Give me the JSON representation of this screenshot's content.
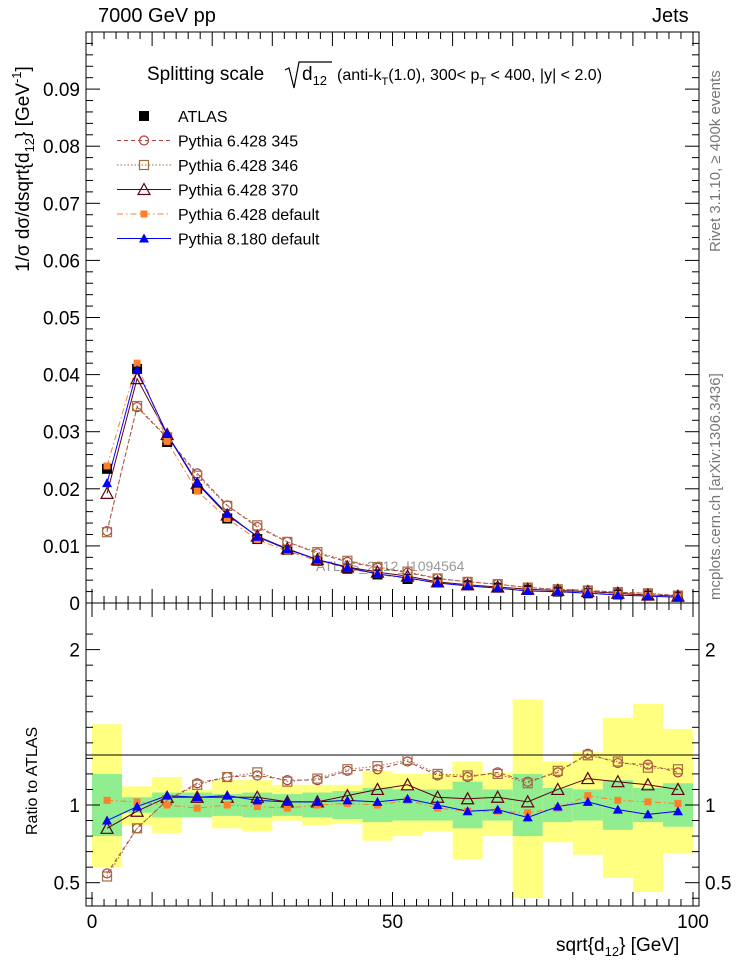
{
  "header": {
    "energy": "7000 GeV pp",
    "process": "Jets"
  },
  "side": {
    "rivet": "Rivet 3.1.10, ≥ 400k events",
    "mcplots": "mcplots.cern.ch [arXiv:1306.3436]"
  },
  "chart_data": [
    {
      "type": "line",
      "title": "Splitting scale √d12 (anti-kT(1.0), 300< pT < 400, |y| < 2.0)",
      "title_parts": {
        "main": "Splitting scale",
        "d": "d",
        "sub12": "12",
        "anti": "(anti-k",
        "T": "T",
        "rest1": "(1.0), 300< p",
        "rest2": " < 400, |y| < 2.0)"
      },
      "ylabel": "1/σ dσ/dsqrt{d12} [GeV-1]",
      "ylabel_parts": {
        "main": "1/σ dσ/dsqrt{d",
        "sub": "12",
        "unit": "} [GeV",
        "sup": "-1",
        "end": "]"
      },
      "watermark": "ATLAS_2012_I1094564",
      "xlim": [
        -1,
        101
      ],
      "ylim": [
        0,
        0.1
      ],
      "yticks": [
        "0",
        "0.01",
        "0.02",
        "0.03",
        "0.04",
        "0.05",
        "0.06",
        "0.07",
        "0.08",
        "0.09"
      ],
      "legend_position": "top-left",
      "x": [
        2.5,
        7.5,
        12.5,
        17.5,
        22.5,
        27.5,
        32.5,
        37.5,
        42.5,
        47.5,
        52.5,
        57.5,
        62.5,
        67.5,
        72.5,
        77.5,
        82.5,
        87.5,
        92.5,
        97.5
      ],
      "series": [
        {
          "name": "ATLAS",
          "color": "#000000",
          "marker": "square-filled",
          "line": "none",
          "values": [
            0.0235,
            0.041,
            0.0282,
            0.02,
            0.0148,
            0.0112,
            0.0093,
            0.0074,
            0.006,
            0.005,
            0.0042,
            0.0036,
            0.0031,
            0.0027,
            0.0023,
            0.002,
            0.0017,
            0.0015,
            0.0013,
            0.0011
          ]
        },
        {
          "name": "Pythia 6.428 345",
          "color": "#b04040",
          "marker": "circle-open",
          "line": "dashed",
          "values": [
            0.0126,
            0.0343,
            0.0289,
            0.0227,
            0.0171,
            0.0133,
            0.0107,
            0.0087,
            0.0072,
            0.0062,
            0.0053,
            0.0043,
            0.0037,
            0.0033,
            0.0027,
            0.0024,
            0.0022,
            0.0019,
            0.0017,
            0.0013
          ]
        },
        {
          "name": "Pythia 6.428 346",
          "color": "#a07040",
          "marker": "square-open",
          "line": "dotted",
          "values": [
            0.0124,
            0.0345,
            0.029,
            0.0223,
            0.017,
            0.0136,
            0.0107,
            0.0089,
            0.0074,
            0.0063,
            0.0055,
            0.0043,
            0.0037,
            0.0033,
            0.0027,
            0.0024,
            0.0022,
            0.0019,
            0.0017,
            0.0013
          ]
        },
        {
          "name": "Pythia 6.428 370",
          "color": "#600010",
          "marker": "triangle-open",
          "line": "solid",
          "values": [
            0.0192,
            0.0393,
            0.0295,
            0.0209,
            0.0154,
            0.0117,
            0.0095,
            0.0076,
            0.0063,
            0.0054,
            0.0047,
            0.0037,
            0.0032,
            0.0028,
            0.0024,
            0.0022,
            0.002,
            0.0017,
            0.0014,
            0.0012
          ]
        },
        {
          "name": "Pythia 6.428 default",
          "color": "#ff7f2a",
          "marker": "square-filled-small",
          "line": "dashdot",
          "values": [
            0.024,
            0.042,
            0.0283,
            0.0196,
            0.0148,
            0.0111,
            0.0091,
            0.0074,
            0.0061,
            0.005,
            0.0043,
            0.0035,
            0.003,
            0.0026,
            0.0022,
            0.0019,
            0.0018,
            0.0015,
            0.0013,
            0.0011
          ]
        },
        {
          "name": "Pythia 8.180 default",
          "color": "#0000ff",
          "marker": "triangle-filled",
          "line": "solid",
          "values": [
            0.021,
            0.0408,
            0.0296,
            0.0211,
            0.0156,
            0.0116,
            0.0094,
            0.0076,
            0.0062,
            0.0051,
            0.0044,
            0.0035,
            0.003,
            0.0026,
            0.0021,
            0.002,
            0.0017,
            0.0014,
            0.0012,
            0.001
          ]
        }
      ]
    },
    {
      "type": "line",
      "ylabel": "Ratio to ATLAS",
      "xlabel": "sqrt{d12} [GeV]",
      "xlabel_parts": {
        "main": "sqrt{d",
        "sub": "12",
        "end": "} [GeV]"
      },
      "xlim": [
        -1,
        101
      ],
      "ylim": [
        0.35,
        2.3
      ],
      "xticks": [
        "0",
        "50",
        "100"
      ],
      "yticks": [
        "0.5",
        "1",
        "2"
      ],
      "x": [
        2.5,
        7.5,
        12.5,
        17.5,
        22.5,
        27.5,
        32.5,
        37.5,
        42.5,
        47.5,
        52.5,
        57.5,
        62.5,
        67.5,
        72.5,
        77.5,
        82.5,
        87.5,
        92.5,
        97.5
      ],
      "bands": {
        "stat_color": "#90ee90",
        "total_color": "#ffff80",
        "stat": [
          [
            0.8,
            1.2
          ],
          [
            0.95,
            1.05
          ],
          [
            0.92,
            1.08
          ],
          [
            0.92,
            1.08
          ],
          [
            0.93,
            1.07
          ],
          [
            0.92,
            1.08
          ],
          [
            0.93,
            1.07
          ],
          [
            0.92,
            1.08
          ],
          [
            0.91,
            1.09
          ],
          [
            0.89,
            1.11
          ],
          [
            0.9,
            1.1
          ],
          [
            0.9,
            1.1
          ],
          [
            0.85,
            1.15
          ],
          [
            0.9,
            1.1
          ],
          [
            0.8,
            1.2
          ],
          [
            0.89,
            1.11
          ],
          [
            0.9,
            1.1
          ],
          [
            0.84,
            1.16
          ],
          [
            0.89,
            1.11
          ],
          [
            0.86,
            1.14
          ]
        ],
        "total": [
          [
            0.6,
            1.52
          ],
          [
            0.87,
            1.12
          ],
          [
            0.82,
            1.18
          ],
          [
            0.92,
            1.1
          ],
          [
            0.85,
            1.16
          ],
          [
            0.83,
            1.16
          ],
          [
            0.9,
            1.13
          ],
          [
            0.87,
            1.13
          ],
          [
            0.88,
            1.13
          ],
          [
            0.77,
            1.22
          ],
          [
            0.8,
            1.2
          ],
          [
            0.83,
            1.2
          ],
          [
            0.65,
            1.28
          ],
          [
            0.8,
            1.21
          ],
          [
            0.4,
            1.68
          ],
          [
            0.76,
            1.28
          ],
          [
            0.68,
            1.34
          ],
          [
            0.53,
            1.56
          ],
          [
            0.44,
            1.65
          ],
          [
            0.69,
            1.49
          ]
        ]
      },
      "series": [
        {
          "name": "Pythia 6.428 345",
          "values": [
            0.56,
            0.85,
            1.03,
            1.14,
            1.18,
            1.19,
            1.16,
            1.16,
            1.22,
            1.23,
            1.28,
            1.19,
            1.18,
            1.21,
            1.15,
            1.21,
            1.33,
            1.27,
            1.26,
            1.21
          ]
        },
        {
          "name": "Pythia 6.428 346",
          "values": [
            0.54,
            0.85,
            1.03,
            1.13,
            1.18,
            1.21,
            1.15,
            1.17,
            1.23,
            1.25,
            1.29,
            1.2,
            1.19,
            1.2,
            1.14,
            1.22,
            1.32,
            1.28,
            1.24,
            1.23
          ]
        },
        {
          "name": "Pythia 6.428 370",
          "values": [
            0.85,
            0.96,
            1.05,
            1.05,
            1.05,
            1.05,
            1.02,
            1.02,
            1.06,
            1.1,
            1.13,
            1.05,
            1.04,
            1.05,
            1.02,
            1.1,
            1.17,
            1.15,
            1.13,
            1.1
          ]
        },
        {
          "name": "Pythia 6.428 default",
          "values": [
            1.03,
            1.02,
            1.0,
            0.98,
            1.0,
            0.99,
            0.98,
            1.0,
            1.01,
            1.0,
            1.03,
            0.98,
            0.96,
            0.96,
            0.95,
            0.98,
            1.06,
            1.03,
            1.02,
            1.01
          ]
        },
        {
          "name": "Pythia 8.180 default",
          "values": [
            0.9,
            0.99,
            1.06,
            1.05,
            1.06,
            1.03,
            1.02,
            1.02,
            1.03,
            1.02,
            1.04,
            1.0,
            0.96,
            0.97,
            0.92,
            0.99,
            1.02,
            0.97,
            0.94,
            0.96
          ]
        }
      ]
    }
  ]
}
